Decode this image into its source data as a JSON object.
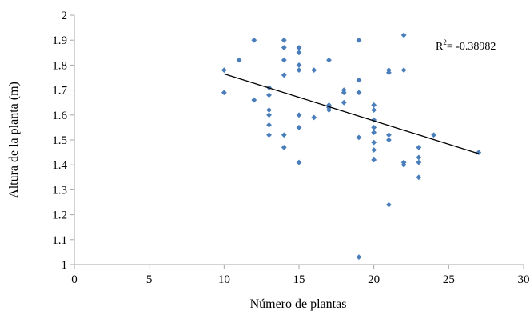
{
  "chart_data": {
    "type": "scatter",
    "xlabel": "Número de plantas",
    "ylabel": "Altura de la planta (m)",
    "xlim": [
      0,
      30
    ],
    "ylim": [
      1,
      2
    ],
    "xticks": [
      0,
      5,
      10,
      15,
      20,
      25,
      30
    ],
    "yticks": [
      1,
      1.1,
      1.2,
      1.3,
      1.4,
      1.5,
      1.6,
      1.7,
      1.8,
      1.9,
      2
    ],
    "ytick_labels": [
      "1",
      "1.1",
      "1.2",
      "1.3",
      "1.4",
      "1.5",
      "1.6",
      "1.7",
      "1.8",
      "1.9",
      "2"
    ],
    "grid": false,
    "legend": "none",
    "marker_color": "#4a7ebb",
    "trendline_color": "#000000",
    "annotation": {
      "base": "R",
      "sup": "2",
      "rest": "= -0.38982"
    },
    "trendline": {
      "x": [
        10,
        27
      ],
      "y": [
        1.765,
        1.445
      ]
    },
    "points": [
      {
        "x": 10,
        "y": 1.78
      },
      {
        "x": 10,
        "y": 1.69
      },
      {
        "x": 11,
        "y": 1.82
      },
      {
        "x": 12,
        "y": 1.9
      },
      {
        "x": 12,
        "y": 1.66
      },
      {
        "x": 13,
        "y": 1.71
      },
      {
        "x": 13,
        "y": 1.68
      },
      {
        "x": 13,
        "y": 1.62
      },
      {
        "x": 13,
        "y": 1.6
      },
      {
        "x": 13,
        "y": 1.56
      },
      {
        "x": 13,
        "y": 1.52
      },
      {
        "x": 14,
        "y": 1.9
      },
      {
        "x": 14,
        "y": 1.87
      },
      {
        "x": 14,
        "y": 1.82
      },
      {
        "x": 14,
        "y": 1.76
      },
      {
        "x": 14,
        "y": 1.52
      },
      {
        "x": 14,
        "y": 1.47
      },
      {
        "x": 15,
        "y": 1.87
      },
      {
        "x": 15,
        "y": 1.85
      },
      {
        "x": 15,
        "y": 1.8
      },
      {
        "x": 15,
        "y": 1.78
      },
      {
        "x": 15,
        "y": 1.6
      },
      {
        "x": 15,
        "y": 1.55
      },
      {
        "x": 15,
        "y": 1.41
      },
      {
        "x": 16,
        "y": 1.78
      },
      {
        "x": 16,
        "y": 1.59
      },
      {
        "x": 17,
        "y": 1.82
      },
      {
        "x": 17,
        "y": 1.64
      },
      {
        "x": 17,
        "y": 1.63
      },
      {
        "x": 17,
        "y": 1.62
      },
      {
        "x": 18,
        "y": 1.7
      },
      {
        "x": 18,
        "y": 1.69
      },
      {
        "x": 18,
        "y": 1.65
      },
      {
        "x": 19,
        "y": 1.9
      },
      {
        "x": 19,
        "y": 1.74
      },
      {
        "x": 19,
        "y": 1.69
      },
      {
        "x": 19,
        "y": 1.51
      },
      {
        "x": 19,
        "y": 1.03
      },
      {
        "x": 20,
        "y": 1.64
      },
      {
        "x": 20,
        "y": 1.62
      },
      {
        "x": 20,
        "y": 1.58
      },
      {
        "x": 20,
        "y": 1.55
      },
      {
        "x": 20,
        "y": 1.53
      },
      {
        "x": 20,
        "y": 1.49
      },
      {
        "x": 20,
        "y": 1.46
      },
      {
        "x": 20,
        "y": 1.42
      },
      {
        "x": 21,
        "y": 1.78
      },
      {
        "x": 21,
        "y": 1.77
      },
      {
        "x": 21,
        "y": 1.52
      },
      {
        "x": 21,
        "y": 1.5
      },
      {
        "x": 21,
        "y": 1.24
      },
      {
        "x": 22,
        "y": 1.92
      },
      {
        "x": 22,
        "y": 1.78
      },
      {
        "x": 22,
        "y": 1.41
      },
      {
        "x": 22,
        "y": 1.4
      },
      {
        "x": 23,
        "y": 1.47
      },
      {
        "x": 23,
        "y": 1.43
      },
      {
        "x": 23,
        "y": 1.41
      },
      {
        "x": 23,
        "y": 1.35
      },
      {
        "x": 24,
        "y": 1.52
      },
      {
        "x": 27,
        "y": 1.45
      }
    ]
  }
}
